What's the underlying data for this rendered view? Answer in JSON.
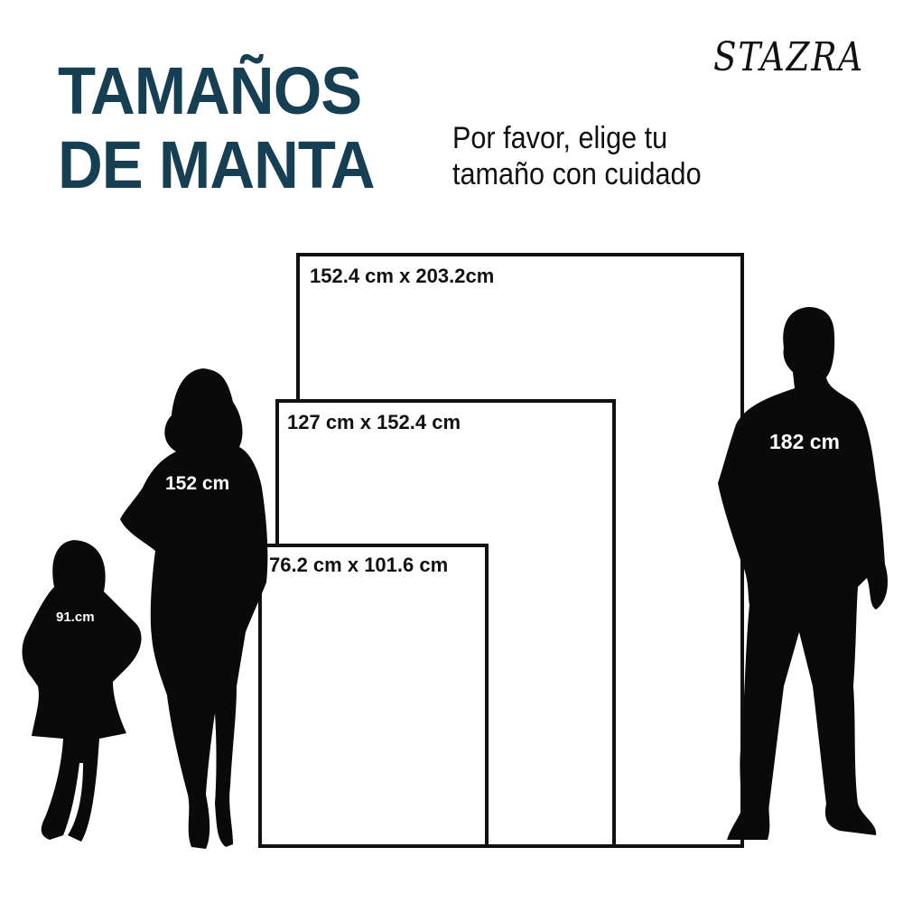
{
  "header": {
    "title_line1": "TAMAÑOS",
    "title_line2": "DE MANTA",
    "subtitle_line1": "Por favor, elige tu",
    "subtitle_line2": "tamaño con cuidado",
    "brand": "STAZRA"
  },
  "colors": {
    "title": "#173f54",
    "outline": "#111111",
    "silhouette": "#0a0a0a"
  },
  "blankets": [
    {
      "label": "152.4 cm x 203.2cm"
    },
    {
      "label": "127 cm x 152.4 cm"
    },
    {
      "label": "76.2 cm x 101.6 cm"
    }
  ],
  "people": [
    {
      "label": "91.cm",
      "icon": "girl-silhouette"
    },
    {
      "label": "152 cm",
      "icon": "woman-silhouette"
    },
    {
      "label": "182 cm",
      "icon": "man-silhouette"
    }
  ]
}
